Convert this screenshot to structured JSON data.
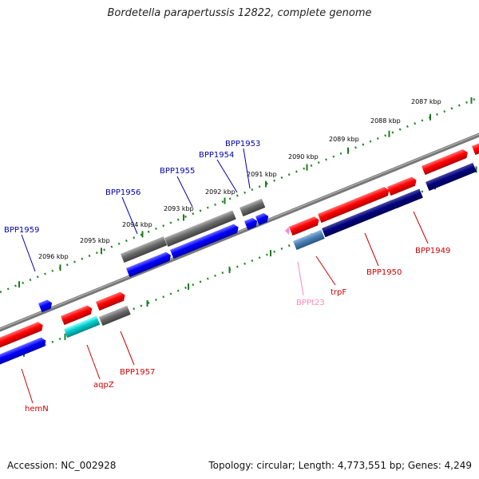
{
  "title": "Bordetella parapertussis 12822, complete genome",
  "footer": {
    "accession": "Accession: NC_002928",
    "summary": "Topology: circular; Length: 4,773,551 bp; Genes: 4,249"
  },
  "colors": {
    "forward_gene": "#ff0000",
    "reverse_gene": "#0000ff",
    "dark_gene": "#000080",
    "gray_gene": "#707070",
    "trna": "#ff88cc",
    "cyan_gene": "#00cccc",
    "steelblue_gene": "#4a7fb5",
    "tick_green": "#227722",
    "label_blue": "#0000aa",
    "label_red": "#cc0000",
    "label_pink": "#ff88bb"
  },
  "scale": {
    "ticks": [
      "2087 kbp",
      "2088 kbp",
      "2089 kbp",
      "2090 kbp",
      "2091 kbp",
      "2092 kbp",
      "2093 kbp",
      "2094 kbp",
      "2095 kbp",
      "2096 kbp"
    ]
  },
  "genes_upper": [
    "BPP1953",
    "BPP1954",
    "BPP1955",
    "BPP1956",
    "BPP1959"
  ],
  "genes_lower": [
    "BPP1949",
    "BPP1950",
    "trpF",
    "BPPt23",
    "BPP1957",
    "aqpZ",
    "hemN"
  ]
}
